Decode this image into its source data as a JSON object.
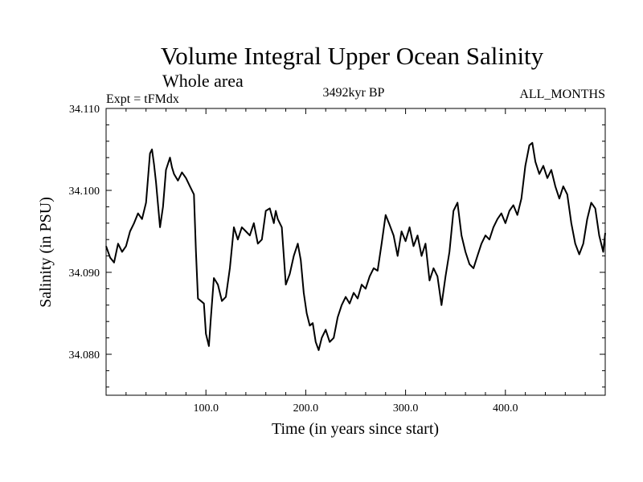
{
  "chart_data": {
    "type": "line",
    "title": "Volume Integral Upper Ocean Salinity",
    "subtitle": "Whole area",
    "left_label": "Expt = tFMdx",
    "center_label": "3492kyr BP",
    "right_label": "ALL_MONTHS",
    "xlabel": "Time (in years since start)",
    "ylabel": "Salinity (in PSU)",
    "xlim": [
      0,
      500
    ],
    "ylim": [
      34.075,
      34.11
    ],
    "x_ticks": [
      100,
      200,
      300,
      400
    ],
    "x_tick_labels": [
      "100.0",
      "200.0",
      "300.0",
      "400.0"
    ],
    "y_ticks": [
      34.08,
      34.09,
      34.1,
      34.11
    ],
    "y_tick_labels": [
      "34.080",
      "34.090",
      "34.100",
      "34.110"
    ],
    "series": [
      {
        "name": "Salinity",
        "color": "#000000",
        "x": [
          0,
          4,
          8,
          12,
          16,
          20,
          24,
          28,
          32,
          36,
          40,
          44,
          46,
          48,
          50,
          54,
          57,
          60,
          64,
          66,
          68,
          72,
          76,
          80,
          84,
          88,
          90,
          92,
          95,
          98,
          100,
          103,
          105,
          108,
          112,
          116,
          120,
          124,
          128,
          132,
          136,
          140,
          144,
          148,
          152,
          156,
          160,
          164,
          168,
          170,
          172,
          176,
          180,
          184,
          188,
          192,
          195,
          198,
          201,
          204,
          207,
          210,
          213,
          216,
          220,
          224,
          228,
          232,
          236,
          240,
          244,
          248,
          252,
          256,
          260,
          264,
          268,
          272,
          276,
          280,
          284,
          288,
          292,
          296,
          300,
          304,
          308,
          312,
          316,
          320,
          324,
          328,
          332,
          336,
          340,
          344,
          348,
          352,
          356,
          360,
          364,
          368,
          372,
          376,
          380,
          384,
          388,
          392,
          396,
          400,
          404,
          408,
          412,
          416,
          420,
          424,
          427,
          430,
          434,
          438,
          442,
          446,
          450,
          454,
          458,
          462,
          466,
          470,
          474,
          478,
          482,
          486,
          490,
          494,
          498,
          500
        ],
        "values": [
          34.0932,
          34.0918,
          34.0912,
          34.0935,
          34.0925,
          34.0932,
          34.095,
          34.096,
          34.0972,
          34.0965,
          34.0985,
          34.1045,
          34.105,
          34.1032,
          34.101,
          34.0955,
          34.098,
          34.1025,
          34.104,
          34.1028,
          34.102,
          34.1012,
          34.1022,
          34.1015,
          34.1005,
          34.0995,
          34.0925,
          34.0868,
          34.0865,
          34.0862,
          34.0825,
          34.081,
          34.0845,
          34.0893,
          34.0885,
          34.0865,
          34.087,
          34.0905,
          34.0955,
          34.094,
          34.0955,
          34.095,
          34.0945,
          34.096,
          34.0935,
          34.094,
          34.0975,
          34.0978,
          34.096,
          34.0975,
          34.0965,
          34.0955,
          34.0885,
          34.0898,
          34.092,
          34.0935,
          34.0915,
          34.0875,
          34.085,
          34.0835,
          34.0838,
          34.0815,
          34.0805,
          34.082,
          34.083,
          34.0815,
          34.082,
          34.0845,
          34.086,
          34.087,
          34.0862,
          34.0875,
          34.0868,
          34.0885,
          34.088,
          34.0895,
          34.0905,
          34.0902,
          34.0935,
          34.097,
          34.0958,
          34.0945,
          34.092,
          34.095,
          34.0938,
          34.0955,
          34.0932,
          34.0945,
          34.092,
          34.0935,
          34.089,
          34.0905,
          34.0895,
          34.086,
          34.0895,
          34.0925,
          34.0975,
          34.0985,
          34.0945,
          34.0925,
          34.091,
          34.0905,
          34.092,
          34.0935,
          34.0945,
          34.094,
          34.0955,
          34.0965,
          34.0972,
          34.096,
          34.0975,
          34.0982,
          34.097,
          34.099,
          34.103,
          34.1055,
          34.1058,
          34.1035,
          34.102,
          34.103,
          34.1015,
          34.1025,
          34.1005,
          34.099,
          34.1005,
          34.0995,
          34.096,
          34.0935,
          34.0922,
          34.0935,
          34.0965,
          34.0985,
          34.0978,
          34.0945,
          34.0925,
          34.0948
        ]
      }
    ]
  }
}
